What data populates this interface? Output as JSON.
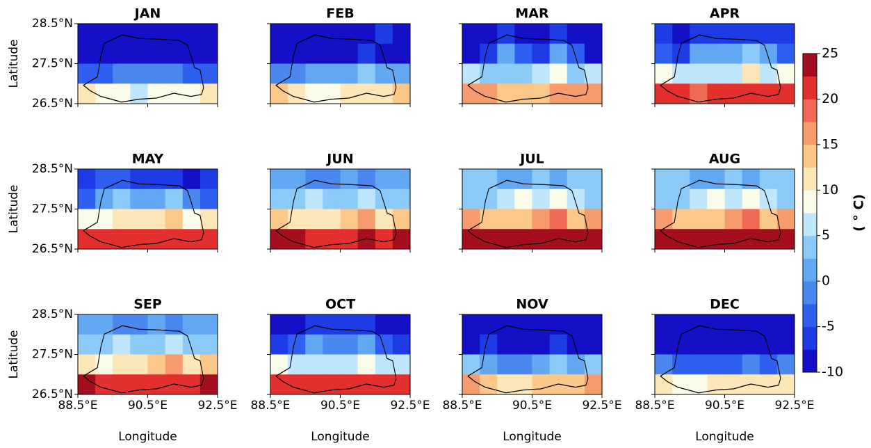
{
  "chart_data": {
    "type": "heatmap",
    "xlim": [
      88.5,
      92.5
    ],
    "ylim": [
      26.5,
      28.5
    ],
    "xticks": [
      {
        "value": 88.5,
        "label": "88.5°E"
      },
      {
        "value": 90.5,
        "label": "90.5°E"
      },
      {
        "value": 92.5,
        "label": "92.5°E"
      }
    ],
    "yticks": [
      {
        "value": 26.5,
        "label": "26.5°N"
      },
      {
        "value": 27.5,
        "label": "27.5°N"
      },
      {
        "value": 28.5,
        "label": "28.5°N"
      }
    ],
    "xlabel": "Longitude",
    "ylabel": "Latitude",
    "colorbar": {
      "label": "( ° C)",
      "clim": [
        -10,
        25
      ],
      "ticks": [
        -10,
        -5,
        0,
        5,
        10,
        15,
        20,
        25
      ],
      "colors": [
        "#1410c8",
        "#1e3ce6",
        "#2e5ff0",
        "#4a88f0",
        "#62a8f2",
        "#8ccaf7",
        "#bfe6fb",
        "#fbfbe9",
        "#fde6b8",
        "#fbc88a",
        "#f59b6e",
        "#ef6a55",
        "#e3302f",
        "#a50e1e"
      ]
    },
    "panels": [
      {
        "title": "JAN",
        "values": [
          [
            -9,
            -9,
            -9,
            -9,
            -9,
            -9,
            -9,
            -9
          ],
          [
            -9,
            -9,
            -9,
            -9,
            -9,
            -9,
            -9,
            -9
          ],
          [
            -3,
            -3,
            -1,
            -1,
            -1,
            -1,
            -3,
            -3
          ],
          [
            11,
            9,
            8,
            6,
            9,
            9,
            9,
            11
          ]
        ]
      },
      {
        "title": "FEB",
        "values": [
          [
            -9,
            -9,
            -9,
            -9,
            -9,
            -9,
            -6,
            -9
          ],
          [
            -9,
            -9,
            -9,
            -9,
            -9,
            -6,
            -9,
            -9
          ],
          [
            -1,
            -1,
            1,
            1,
            1,
            4,
            1,
            1
          ],
          [
            13,
            11,
            9,
            9,
            11,
            11,
            11,
            13
          ]
        ]
      },
      {
        "title": "MAR",
        "values": [
          [
            -9,
            -9,
            -6,
            -9,
            -9,
            -6,
            -9,
            -9
          ],
          [
            -9,
            -6,
            1,
            -3,
            -6,
            1,
            -3,
            -9
          ],
          [
            6,
            4,
            4,
            4,
            6,
            8,
            4,
            6
          ],
          [
            17,
            16,
            14,
            14,
            14,
            16,
            16,
            17
          ]
        ]
      },
      {
        "title": "APR",
        "values": [
          [
            -6,
            -9,
            -6,
            -6,
            -6,
            -6,
            -6,
            -6
          ],
          [
            -3,
            -6,
            1,
            1,
            1,
            4,
            1,
            -3
          ],
          [
            9,
            6,
            6,
            6,
            6,
            11,
            6,
            8
          ],
          [
            21,
            21,
            19,
            21,
            21,
            21,
            21,
            21
          ]
        ]
      },
      {
        "title": "MAY",
        "values": [
          [
            -6,
            -3,
            -3,
            -6,
            -6,
            -6,
            -9,
            -6
          ],
          [
            -3,
            1,
            4,
            1,
            1,
            4,
            -1,
            -3
          ],
          [
            8,
            9,
            11,
            11,
            11,
            14,
            9,
            11
          ],
          [
            21,
            21,
            21,
            21,
            21,
            21,
            21,
            21
          ]
        ]
      },
      {
        "title": "JUN",
        "values": [
          [
            1,
            1,
            -1,
            -1,
            1,
            -1,
            1,
            1
          ],
          [
            4,
            4,
            6,
            4,
            4,
            6,
            4,
            4
          ],
          [
            14,
            11,
            11,
            11,
            13,
            16,
            11,
            14
          ],
          [
            24,
            23,
            21,
            21,
            21,
            23,
            21,
            24
          ]
        ]
      },
      {
        "title": "JUL",
        "values": [
          [
            4,
            4,
            1,
            1,
            4,
            1,
            4,
            4
          ],
          [
            4,
            4,
            6,
            9,
            6,
            9,
            6,
            4
          ],
          [
            16,
            13,
            13,
            13,
            16,
            19,
            13,
            16
          ],
          [
            24,
            23,
            23,
            23,
            24,
            24,
            23,
            24
          ]
        ]
      },
      {
        "title": "AUG",
        "values": [
          [
            4,
            4,
            1,
            1,
            4,
            1,
            4,
            4
          ],
          [
            4,
            4,
            6,
            9,
            6,
            9,
            6,
            4
          ],
          [
            16,
            13,
            13,
            13,
            16,
            19,
            13,
            16
          ],
          [
            24,
            23,
            23,
            23,
            24,
            24,
            23,
            24
          ]
        ]
      },
      {
        "title": "SEP",
        "values": [
          [
            1,
            1,
            -1,
            -1,
            1,
            -1,
            1,
            1
          ],
          [
            4,
            4,
            6,
            4,
            4,
            6,
            4,
            4
          ],
          [
            11,
            9,
            11,
            11,
            13,
            16,
            11,
            13
          ],
          [
            23,
            21,
            21,
            21,
            21,
            21,
            21,
            23
          ]
        ]
      },
      {
        "title": "OCT",
        "values": [
          [
            -9,
            -9,
            -6,
            -6,
            -6,
            -6,
            -9,
            -9
          ],
          [
            -6,
            -3,
            1,
            -1,
            -1,
            1,
            -3,
            -6
          ],
          [
            9,
            6,
            6,
            6,
            6,
            8,
            6,
            6
          ],
          [
            21,
            21,
            21,
            21,
            21,
            21,
            21,
            21
          ]
        ]
      },
      {
        "title": "NOV",
        "values": [
          [
            -9,
            -9,
            -9,
            -9,
            -9,
            -9,
            -9,
            -9
          ],
          [
            -9,
            -6,
            -9,
            -9,
            -9,
            -6,
            -9,
            -9
          ],
          [
            4,
            1,
            -1,
            -1,
            1,
            4,
            1,
            4
          ],
          [
            16,
            14,
            11,
            11,
            14,
            14,
            14,
            16
          ]
        ]
      },
      {
        "title": "DEC",
        "values": [
          [
            -9,
            -9,
            -9,
            -9,
            -9,
            -9,
            -9,
            -9
          ],
          [
            -9,
            -9,
            -9,
            -9,
            -9,
            -9,
            -9,
            -9
          ],
          [
            -1,
            -3,
            -3,
            -3,
            -3,
            -1,
            -3,
            -1
          ],
          [
            11,
            9,
            9,
            11,
            11,
            11,
            11,
            11
          ]
        ]
      }
    ]
  }
}
